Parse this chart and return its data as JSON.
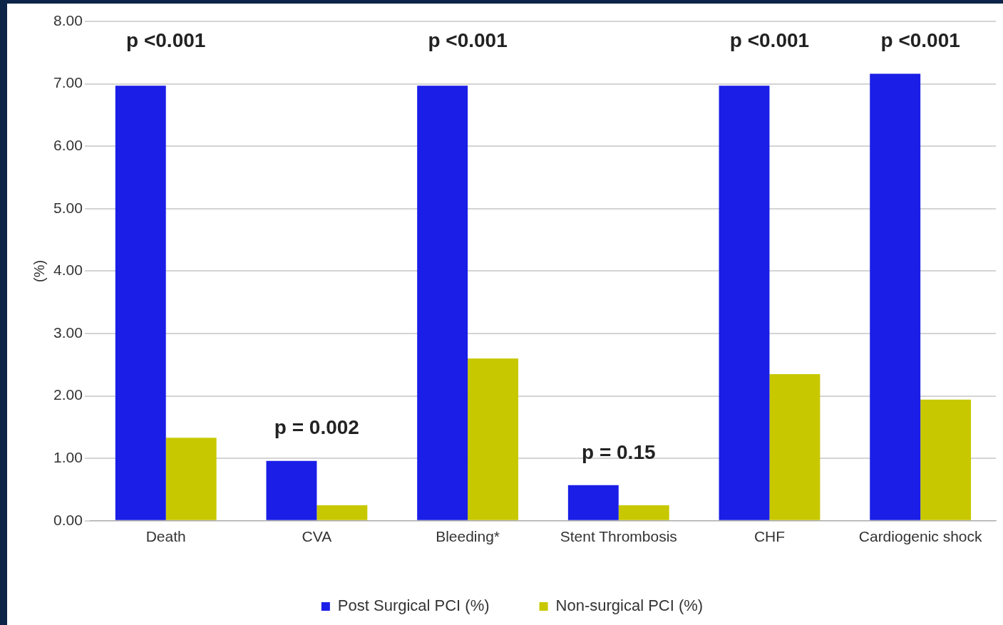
{
  "chart_data": {
    "type": "bar",
    "ylabel": "(%)",
    "categories": [
      "Death",
      "CVA",
      "Bleeding*",
      "Stent Thrombosis",
      "CHF",
      "Cardiogenic shock"
    ],
    "series": [
      {
        "name": "Post Surgical PCI (%)",
        "color": "#1a1ee6",
        "values": [
          6.97,
          0.96,
          6.97,
          0.57,
          6.97,
          7.16
        ]
      },
      {
        "name": "Non-surgical PCI (%)",
        "color": "#c8c800",
        "values": [
          1.33,
          0.25,
          2.6,
          0.25,
          2.35,
          1.94
        ]
      }
    ],
    "ylim": [
      0,
      8
    ],
    "yticks": [
      {
        "value": 0,
        "label": "0.00"
      },
      {
        "value": 1,
        "label": "1.00"
      },
      {
        "value": 2,
        "label": "2.00"
      },
      {
        "value": 3,
        "label": "3.00"
      },
      {
        "value": 4,
        "label": "4.00"
      },
      {
        "value": 5,
        "label": "5.00"
      },
      {
        "value": 6,
        "label": "6.00"
      },
      {
        "value": 7,
        "label": "7.00"
      },
      {
        "value": 8,
        "label": "8.00"
      }
    ],
    "grid": "y",
    "legend": "bottom",
    "annotations": [
      "p <0.001",
      "p = 0.002",
      "p <0.001",
      "p = 0.15",
      "p <0.001",
      "p <0.001"
    ]
  }
}
